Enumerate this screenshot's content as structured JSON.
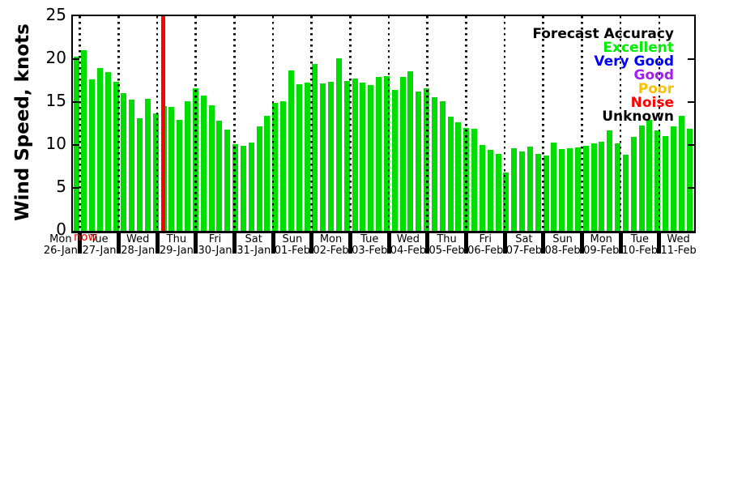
{
  "chart_data": {
    "type": "bar",
    "title": "",
    "ylabel": "Wind Speed, knots",
    "ylim": [
      0,
      25
    ],
    "yticks": [
      0,
      5,
      10,
      15,
      20,
      25
    ],
    "grid": "dotted-vertical-day-boundaries",
    "bar_color": "#00dd00",
    "categories_days": [
      {
        "day": "Mon",
        "date": "26-Jan"
      },
      {
        "day": "Tue",
        "date": "27-Jan"
      },
      {
        "day": "Wed",
        "date": "28-Jan"
      },
      {
        "day": "Thu",
        "date": "29-Jan"
      },
      {
        "day": "Fri",
        "date": "30-Jan"
      },
      {
        "day": "Sat",
        "date": "31-Jan"
      },
      {
        "day": "Sun",
        "date": "01-Feb"
      },
      {
        "day": "Mon",
        "date": "02-Feb"
      },
      {
        "day": "Tue",
        "date": "03-Feb"
      },
      {
        "day": "Wed",
        "date": "04-Feb"
      },
      {
        "day": "Thu",
        "date": "05-Feb"
      },
      {
        "day": "Fri",
        "date": "06-Feb"
      },
      {
        "day": "Sat",
        "date": "07-Feb"
      },
      {
        "day": "Sun",
        "date": "08-Feb"
      },
      {
        "day": "Mon",
        "date": "09-Feb"
      },
      {
        "day": "Tue",
        "date": "10-Feb"
      },
      {
        "day": "Wed",
        "date": "11-Feb"
      }
    ],
    "values": [
      20.3,
      21.0,
      17.6,
      19.0,
      18.5,
      17.4,
      16.0,
      15.3,
      13.1,
      15.4,
      13.7,
      14.5,
      14.4,
      12.9,
      15.1,
      16.6,
      15.8,
      14.6,
      12.8,
      11.8,
      10.1,
      9.9,
      10.3,
      12.2,
      13.4,
      14.9,
      15.1,
      18.7,
      17.1,
      17.3,
      19.4,
      17.2,
      17.4,
      20.1,
      17.5,
      17.7,
      17.3,
      17.0,
      17.9,
      18.0,
      16.4,
      17.9,
      18.6,
      16.2,
      16.6,
      15.6,
      15.1,
      13.3,
      12.6,
      12.0,
      11.9,
      10.0,
      9.4,
      9.0,
      6.8,
      9.6,
      9.2,
      9.8,
      9.0,
      8.8,
      10.3,
      9.5,
      9.6,
      9.7,
      9.9,
      10.2,
      10.4,
      11.7,
      10.2,
      8.9,
      10.9,
      12.3,
      12.9,
      11.7,
      11.0,
      12.2,
      13.4,
      11.9
    ],
    "now_marker": {
      "label": "now",
      "color": "#ff0000"
    },
    "legend": {
      "position": "top-right",
      "title": "Forecast Accuracy",
      "title_color": "#000000",
      "entries": [
        {
          "label": "Excellent",
          "color": "#00ee00"
        },
        {
          "label": "Very Good",
          "color": "#0000ff"
        },
        {
          "label": "Good",
          "color": "#a020f0"
        },
        {
          "label": "Poor",
          "color": "#ffc000"
        },
        {
          "label": "Noise",
          "color": "#ff0000"
        },
        {
          "label": "Unknown",
          "color": "#000000"
        }
      ]
    }
  }
}
